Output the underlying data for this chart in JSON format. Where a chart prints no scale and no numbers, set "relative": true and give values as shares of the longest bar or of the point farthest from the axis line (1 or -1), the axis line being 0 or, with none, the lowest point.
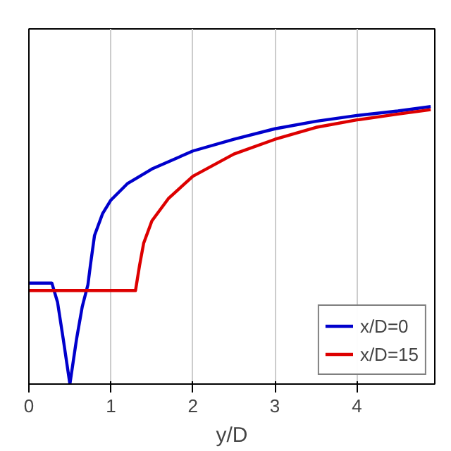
{
  "chart_data": {
    "type": "line",
    "xlabel": "y/D",
    "relative": true,
    "xlim": [
      0,
      4.95
    ],
    "xticks": [
      0,
      1,
      2,
      3,
      4
    ],
    "grid": "x",
    "legend": "bottom right",
    "tick_labels": "x",
    "series": [
      {
        "name": "x/D=0",
        "color": "#0000cc",
        "x": [
          0,
          0.28,
          0.35,
          0.42,
          0.5,
          0.58,
          0.65,
          0.72,
          0.75,
          0.8,
          0.9,
          1.0,
          1.2,
          1.5,
          2,
          2.5,
          3,
          3.5,
          4,
          4.5,
          4.9
        ],
        "values": [
          0.364,
          0.364,
          0.294,
          0.16,
          0,
          0.16,
          0.278,
          0.358,
          0.428,
          0.535,
          0.615,
          0.663,
          0.722,
          0.775,
          0.84,
          0.882,
          0.92,
          0.947,
          0.968,
          0.984,
          1
        ]
      },
      {
        "name": "x/D=15",
        "color": "#dd0000",
        "x": [
          0,
          1.3,
          1.35,
          1.4,
          1.5,
          1.7,
          2,
          2.5,
          3,
          3.5,
          4,
          4.5,
          4.9
        ],
        "values": [
          0.337,
          0.337,
          0.428,
          0.508,
          0.588,
          0.668,
          0.749,
          0.829,
          0.882,
          0.925,
          0.952,
          0.973,
          0.989
        ]
      }
    ]
  }
}
